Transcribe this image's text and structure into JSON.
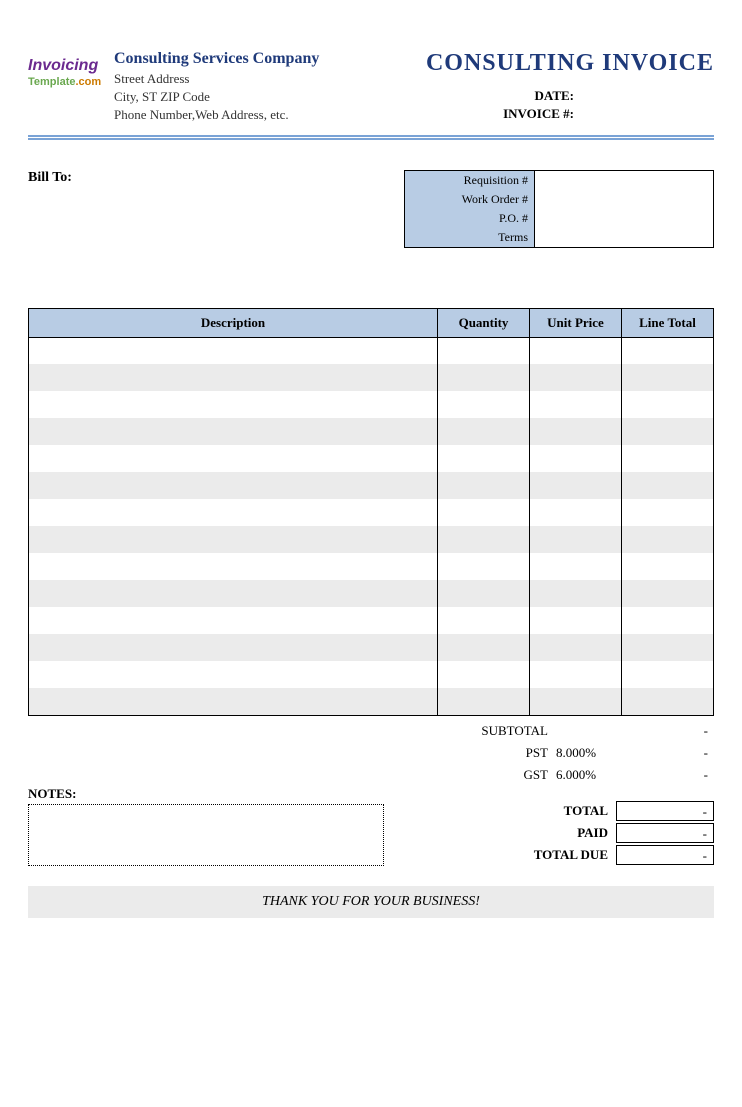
{
  "logo": {
    "line1": "Invoicing",
    "line2a": "Template",
    "line2b": ".com"
  },
  "company": {
    "name": "Consulting Services Company",
    "street": "Street Address",
    "city": "City, ST  ZIP Code",
    "contact": "Phone Number,Web Address, etc."
  },
  "title": "CONSULTING INVOICE",
  "meta": {
    "date_label": "DATE:",
    "invoice_label": "INVOICE #:"
  },
  "billto_label": "Bill To:",
  "order": {
    "req_label": "Requisition #",
    "wo_label": "Work Order #",
    "po_label": "P.O. #",
    "terms_label": "Terms",
    "req_val": "",
    "wo_val": "",
    "po_val": "",
    "terms_val": ""
  },
  "columns": {
    "desc": "Description",
    "qty": "Quantity",
    "price": "Unit Price",
    "total": "Line Total"
  },
  "item_row_count": 14,
  "totals": {
    "subtotal_label": "SUBTOTAL",
    "subtotal_val": "-",
    "pst_label": "PST",
    "pst_pct": "8.000%",
    "pst_val": "-",
    "gst_label": "GST",
    "gst_pct": "6.000%",
    "gst_val": "-",
    "total_label": "TOTAL",
    "total_val": "-",
    "paid_label": "PAID",
    "paid_val": "-",
    "due_label": "TOTAL DUE",
    "due_val": "-"
  },
  "notes_label": "NOTES:",
  "thanks": "THANK YOU FOR YOUR BUSINESS!",
  "colors": {
    "header_blue": "#b8cce4",
    "brand_blue": "#1f3a7a",
    "stripe": "#ebebeb",
    "rule": "#7aa3d6"
  }
}
